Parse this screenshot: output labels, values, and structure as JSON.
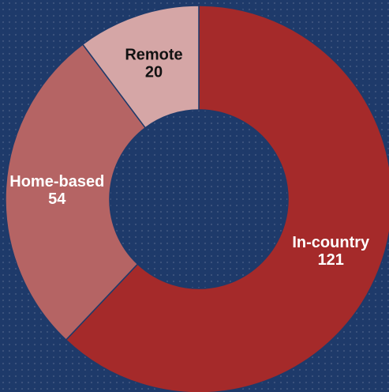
{
  "chart_data": {
    "type": "donut",
    "categories": [
      "In-country",
      "Home-based",
      "Remote"
    ],
    "values": [
      121,
      54,
      20
    ],
    "colors": [
      "#a52a2a",
      "#b56464",
      "#d5a6a6"
    ],
    "label_colors": [
      "#ffffff",
      "#ffffff",
      "#111111"
    ]
  }
}
